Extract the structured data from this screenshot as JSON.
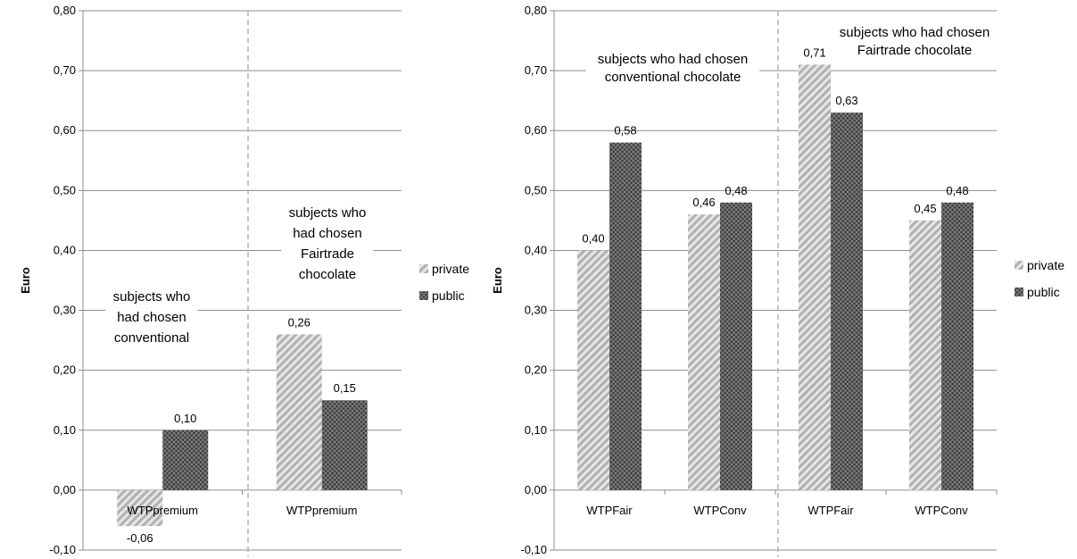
{
  "colors": {
    "private": "#c8c8c8",
    "public": "#505050",
    "grid": "#8c8c8c",
    "divider": "#b4b4b4"
  },
  "chart_data": [
    {
      "type": "bar",
      "ylabel": "Euro",
      "ylim": [
        -0.1,
        0.8
      ],
      "yticks": [
        "-0,10",
        "0,00",
        "0,10",
        "0,20",
        "0,30",
        "0,40",
        "0,50",
        "0,60",
        "0,70",
        "0,80"
      ],
      "categories": [
        "WTPpremium",
        "WTPpremium"
      ],
      "series": [
        {
          "name": "private",
          "values": [
            -0.06,
            0.26
          ],
          "labels": [
            "-0,06",
            "0,26"
          ]
        },
        {
          "name": "public",
          "values": [
            0.1,
            0.15
          ],
          "labels": [
            "0,10",
            "0,15"
          ]
        }
      ],
      "annotations": [
        [
          "subjects who",
          "had chosen",
          "conventional"
        ],
        [
          "subjects who",
          "had chosen",
          "Fairtrade",
          "chocolate"
        ]
      ],
      "grid": true,
      "legend": "right"
    },
    {
      "type": "bar",
      "ylabel": "Euro",
      "ylim": [
        -0.1,
        0.8
      ],
      "yticks": [
        "-0,10",
        "0,00",
        "0,10",
        "0,20",
        "0,30",
        "0,40",
        "0,50",
        "0,60",
        "0,70",
        "0,80"
      ],
      "categories": [
        "WTPFair",
        "WTPConv",
        "WTPFair",
        "WTPConv"
      ],
      "series": [
        {
          "name": "private",
          "values": [
            0.4,
            0.46,
            0.71,
            0.45
          ],
          "labels": [
            "0,40",
            "0,46",
            "0,71",
            "0,45"
          ]
        },
        {
          "name": "public",
          "values": [
            0.58,
            0.48,
            0.63,
            0.48
          ],
          "labels": [
            "0,58",
            "0,48",
            "0,63",
            "0,48"
          ]
        }
      ],
      "annotations": [
        [
          "subjects who  had chosen",
          "conventional chocolate"
        ],
        [
          "subjects who had chosen",
          "Fairtrade chocolate"
        ]
      ],
      "grid": true,
      "legend": "right"
    }
  ]
}
